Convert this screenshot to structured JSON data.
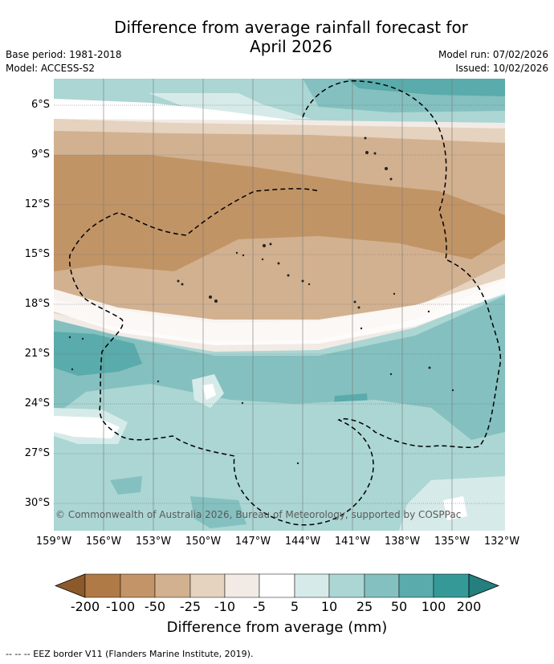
{
  "title": "Difference from average rainfall forecast for April 2026",
  "title_line1": "Difference from average rainfall forecast for",
  "title_line2": "April 2026",
  "meta": {
    "base_period": "Base period: 1981-2018",
    "model": "Model: ACCESS-S2",
    "model_run": "Model run: 07/02/2026",
    "issued": "Issued: 10/02/2026"
  },
  "map": {
    "latitude_labels": [
      "6°S",
      "9°S",
      "12°S",
      "15°S",
      "18°S",
      "21°S",
      "24°S",
      "27°S",
      "30°S"
    ],
    "longitude_labels": [
      "159°W",
      "156°W",
      "153°W",
      "150°W",
      "147°W",
      "144°W",
      "141°W",
      "138°W",
      "135°W",
      "132°W"
    ],
    "copyright": "© Commonwealth of Australia 2026, Bureau of Meteorology, supported by COSPPac"
  },
  "colorbar": {
    "labels": [
      "-200",
      "-100",
      "-50",
      "-25",
      "-10",
      "-5",
      "5",
      "10",
      "25",
      "50",
      "100",
      "200"
    ],
    "colors": [
      "#8c5a2a",
      "#b07a46",
      "#c29467",
      "#d2b190",
      "#e5d2bf",
      "#f2ebe5",
      "#ffffff",
      "#d6ebe9",
      "#abd6d4",
      "#84c0bf",
      "#5aabab",
      "#359998",
      "#247f7e"
    ],
    "title": "Difference from average (mm)"
  },
  "footnote": "--  --  -- EEZ border V11 (Flanders Marine Institute, 2019).",
  "palette": {
    "dry_strong": "#c19466",
    "dry_mid": "#d2b190",
    "dry_light": "#e5d2bf",
    "dry_faint": "#f2ebe5",
    "wet_faint": "#d6ebe9",
    "wet_light": "#abd6d4",
    "wet_mid": "#84c0bf",
    "wet_strong": "#5aabab"
  }
}
